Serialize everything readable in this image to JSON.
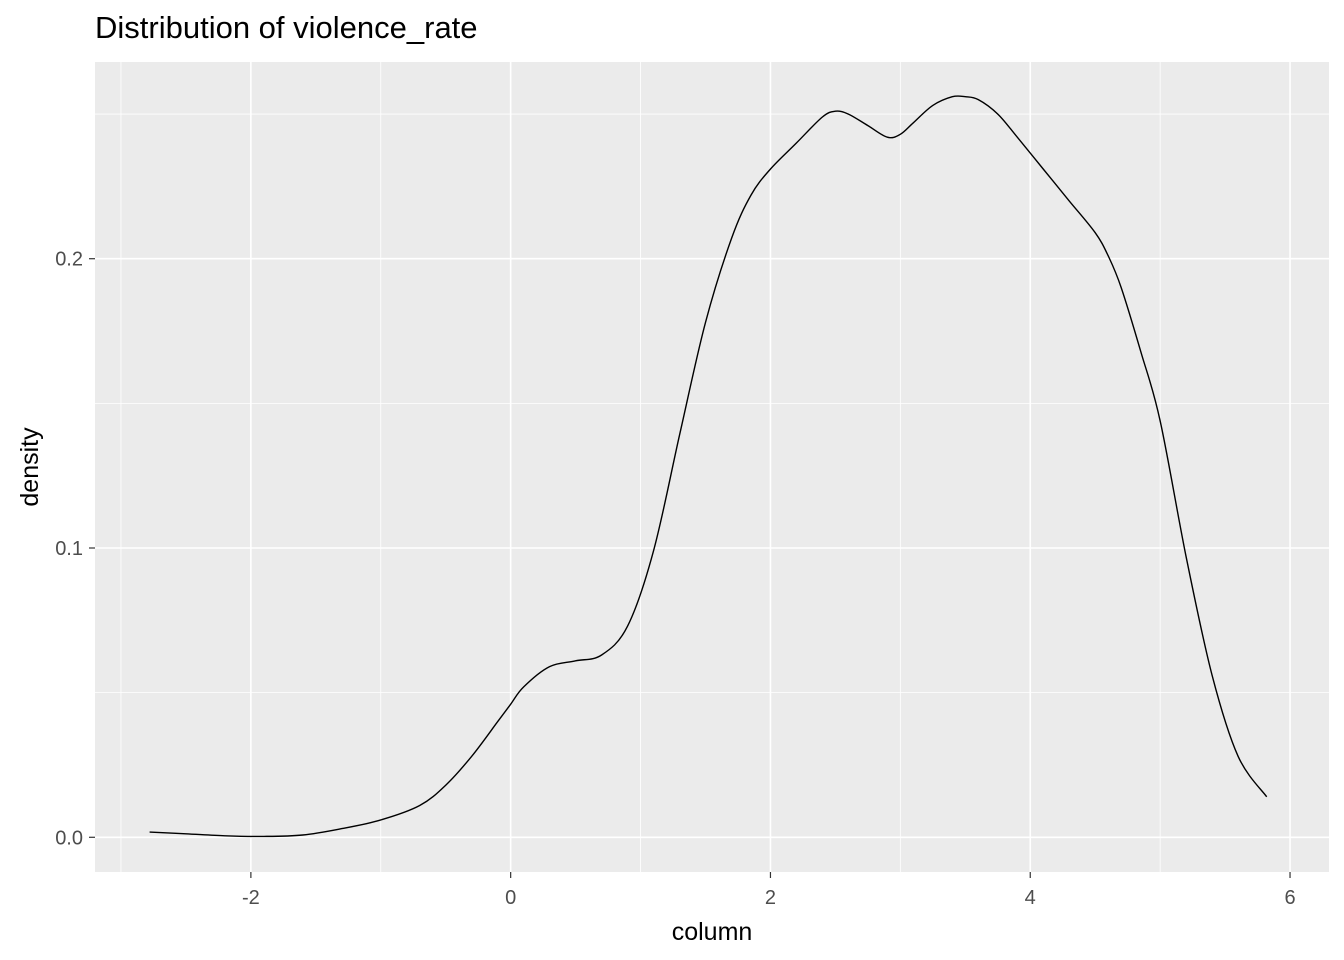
{
  "chart_data": {
    "type": "line",
    "title": "Distribution of violence_rate",
    "xlabel": "column",
    "ylabel": "density",
    "xlim": [
      -3.2,
      6.3
    ],
    "ylim": [
      -0.012,
      0.268
    ],
    "x_ticks": [
      -2,
      0,
      2,
      4,
      6
    ],
    "x_tick_labels": [
      "-2",
      "0",
      "2",
      "4",
      "6"
    ],
    "y_ticks": [
      0.0,
      0.1,
      0.2
    ],
    "y_tick_labels": [
      "0.0",
      "0.1",
      "0.2"
    ],
    "grid": true,
    "background": "#ebebeb",
    "grid_color": "#ffffff",
    "line_color": "#000000",
    "series": [
      {
        "x": [
          -2.78,
          -2.5,
          -2.2,
          -1.9,
          -1.6,
          -1.3,
          -1.0,
          -0.7,
          -0.5,
          -0.3,
          -0.1,
          0.0,
          0.1,
          0.3,
          0.5,
          0.7,
          0.9,
          1.1,
          1.3,
          1.5,
          1.7,
          1.85,
          2.0,
          2.2,
          2.4,
          2.5,
          2.6,
          2.75,
          2.9,
          3.0,
          3.1,
          3.25,
          3.4,
          3.5,
          3.6,
          3.75,
          3.9,
          4.1,
          4.3,
          4.5,
          4.6,
          4.7,
          4.85,
          5.0,
          5.2,
          5.4,
          5.6,
          5.82
        ],
        "y": [
          0.0018,
          0.0012,
          0.0005,
          0.0003,
          0.0008,
          0.003,
          0.006,
          0.011,
          0.018,
          0.028,
          0.04,
          0.046,
          0.052,
          0.059,
          0.061,
          0.063,
          0.073,
          0.099,
          0.139,
          0.178,
          0.207,
          0.222,
          0.231,
          0.24,
          0.249,
          0.251,
          0.25,
          0.246,
          0.242,
          0.243,
          0.247,
          0.253,
          0.256,
          0.256,
          0.255,
          0.25,
          0.242,
          0.231,
          0.22,
          0.209,
          0.201,
          0.19,
          0.168,
          0.144,
          0.097,
          0.056,
          0.028,
          0.014
        ]
      }
    ]
  }
}
